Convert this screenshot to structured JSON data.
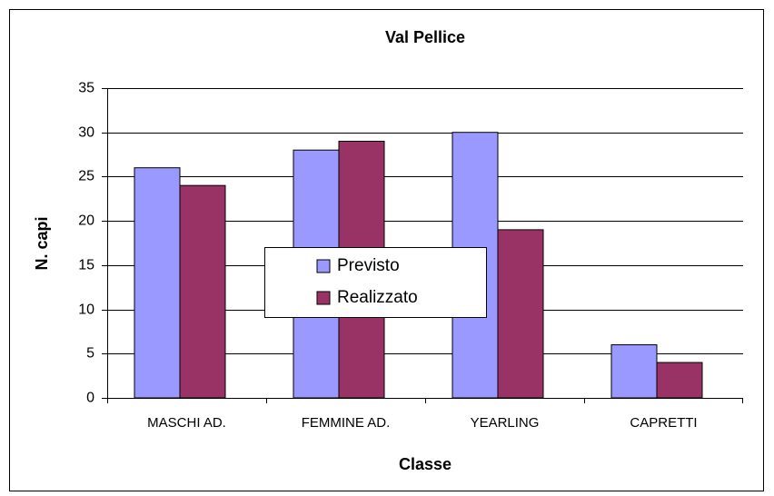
{
  "chart_data": {
    "type": "bar",
    "title": "Val Pellice",
    "x_label": "Classe",
    "y_label": "N. capi",
    "categories": [
      "MASCHI AD.",
      "FEMMINE AD.",
      "YEARLING",
      "CAPRETTI"
    ],
    "series": [
      {
        "name": "Previsto",
        "color": "#9999ff",
        "values": [
          26,
          28,
          30,
          6
        ]
      },
      {
        "name": "Realizzato",
        "color": "#993366",
        "values": [
          24,
          29,
          19,
          4
        ]
      }
    ],
    "ylim": [
      0,
      35
    ],
    "yticks": [
      0,
      5,
      10,
      15,
      20,
      25,
      30,
      35
    ],
    "grid": true,
    "legend": "center"
  }
}
